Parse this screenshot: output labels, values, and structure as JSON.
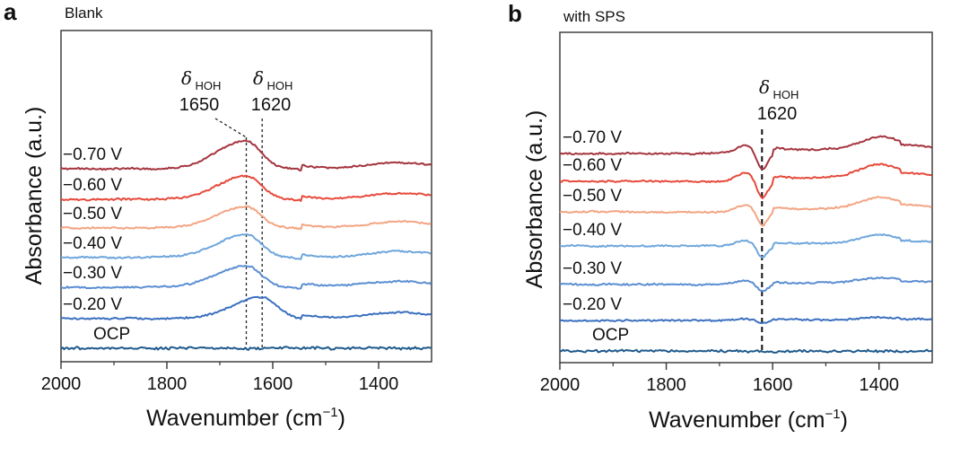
{
  "chart_data": [
    {
      "panel": "a",
      "type": "line",
      "title": "Blank",
      "xlabel": "Wavenumber (cm",
      "xlabel_sup": "−1",
      "xlabel_close": ")",
      "ylabel": "Absorbance (a.u.)",
      "xlim": [
        2000,
        1300
      ],
      "x_ticks": [
        2000,
        1800,
        1600,
        1400
      ],
      "x_minor_ticks": [
        1900,
        1700,
        1500
      ],
      "annotations": [
        {
          "symbol": "δ",
          "sub": "HOH",
          "value": "1650",
          "x": 1650,
          "style": "dashed"
        },
        {
          "symbol": "δ",
          "sub": "HOH",
          "value": "1620",
          "x": 1620,
          "style": "dashed"
        }
      ],
      "series": [
        {
          "name": "−0.70 V",
          "color": "#a5343f",
          "offset": 6,
          "peak_x": 1650,
          "peak_h": 0.9,
          "peak_type": "up"
        },
        {
          "name": "−0.60 V",
          "color": "#e64a3b",
          "offset": 5,
          "peak_x": 1650,
          "peak_h": 0.75,
          "peak_type": "up"
        },
        {
          "name": "−0.50 V",
          "color": "#f3a583",
          "offset": 4,
          "peak_x": 1650,
          "peak_h": 0.7,
          "peak_type": "up"
        },
        {
          "name": "−0.40 V",
          "color": "#6fa6dc",
          "offset": 3,
          "peak_x": 1650,
          "peak_h": 0.75,
          "peak_type": "up"
        },
        {
          "name": "−0.30 V",
          "color": "#5b8ed2",
          "offset": 2,
          "peak_x": 1650,
          "peak_h": 0.7,
          "peak_type": "up"
        },
        {
          "name": "−0.20 V",
          "color": "#3b70bf",
          "offset": 1,
          "peak_x": 1620,
          "peak_h": 0.7,
          "peak_type": "up"
        },
        {
          "name": "OCP",
          "color": "#1f5a8c",
          "offset": 0,
          "peak_x": 1620,
          "peak_h": 0.0,
          "peak_type": "none"
        }
      ]
    },
    {
      "panel": "b",
      "type": "line",
      "title": "with SPS",
      "xlabel": "Wavenumber (cm",
      "xlabel_sup": "−1",
      "xlabel_close": ")",
      "ylabel": "Absorbance (a.u.)",
      "xlim": [
        2000,
        1300
      ],
      "x_ticks": [
        2000,
        1800,
        1600,
        1400
      ],
      "x_minor_ticks": [
        1900,
        1700,
        1500
      ],
      "annotations": [
        {
          "symbol": "δ",
          "sub": "HOH",
          "value": "1620",
          "x": 1620,
          "style": "dashed"
        }
      ],
      "series": [
        {
          "name": "−0.70 V",
          "color": "#a5343f",
          "offset": 6,
          "peak_x": 1620,
          "peak_h": 0.6,
          "peak_type": "derivative"
        },
        {
          "name": "−0.60 V",
          "color": "#e64a3b",
          "offset": 5,
          "peak_x": 1620,
          "peak_h": 0.6,
          "peak_type": "derivative"
        },
        {
          "name": "−0.50 V",
          "color": "#f3a583",
          "offset": 4,
          "peak_x": 1620,
          "peak_h": 0.5,
          "peak_type": "derivative"
        },
        {
          "name": "−0.40 V",
          "color": "#6fa6dc",
          "offset": 3,
          "peak_x": 1620,
          "peak_h": 0.4,
          "peak_type": "derivative"
        },
        {
          "name": "−0.30 V",
          "color": "#5b8ed2",
          "offset": 2,
          "peak_x": 1620,
          "peak_h": 0.25,
          "peak_type": "derivative"
        },
        {
          "name": "−0.20 V",
          "color": "#3b70bf",
          "offset": 1,
          "peak_x": 1620,
          "peak_h": 0.1,
          "peak_type": "derivative"
        },
        {
          "name": "OCP",
          "color": "#1f5a8c",
          "offset": 0,
          "peak_x": 1620,
          "peak_h": 0.0,
          "peak_type": "none"
        }
      ]
    }
  ]
}
